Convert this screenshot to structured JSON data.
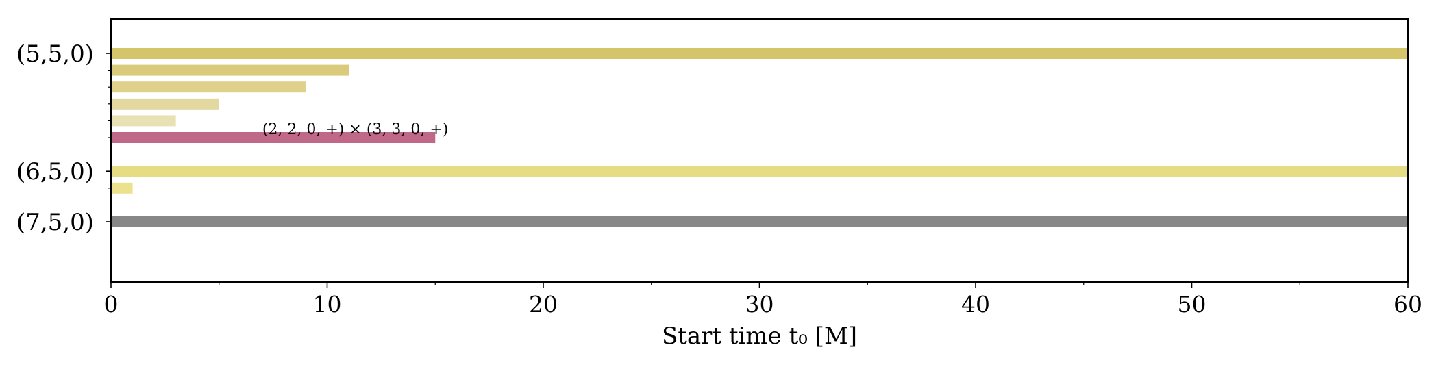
{
  "chart_data": {
    "type": "bar",
    "orientation": "horizontal",
    "title": "",
    "xlabel": "Start time t₀ [M]",
    "ylabel": "",
    "xlim": [
      0,
      60
    ],
    "x_major_ticks": [
      0,
      10,
      20,
      30,
      40,
      50,
      60
    ],
    "x_minor_ticks": [
      5,
      15,
      25,
      35,
      45,
      55
    ],
    "grid": false,
    "legend": "none",
    "row_groups": [
      {
        "label": "(5,5,0)",
        "rows": [
          0,
          1,
          2,
          3,
          4,
          5
        ]
      },
      {
        "label": "(6,5,0)",
        "rows": [
          7,
          8
        ]
      },
      {
        "label": "(7,5,0)",
        "rows": [
          10
        ]
      }
    ],
    "bars": [
      {
        "row": 0,
        "value": 60,
        "color": "#d5c56a"
      },
      {
        "row": 1,
        "value": 11,
        "color": "#d9cb7a"
      },
      {
        "row": 2,
        "value": 9,
        "color": "#dfd18c"
      },
      {
        "row": 3,
        "value": 5,
        "color": "#e3d9a0"
      },
      {
        "row": 4,
        "value": 3,
        "color": "#e8e1b4"
      },
      {
        "row": 5,
        "value": 15,
        "color": "#c06887"
      },
      {
        "row": 7,
        "value": 60,
        "color": "#e6dc84"
      },
      {
        "row": 8,
        "value": 1,
        "color": "#ece28e"
      },
      {
        "row": 10,
        "value": 60,
        "color": "#878787"
      }
    ],
    "annotations": [
      {
        "text": "(2, 2, 0, +) × (3, 3, 0, +)",
        "x": 7,
        "row": 4.55
      }
    ]
  }
}
